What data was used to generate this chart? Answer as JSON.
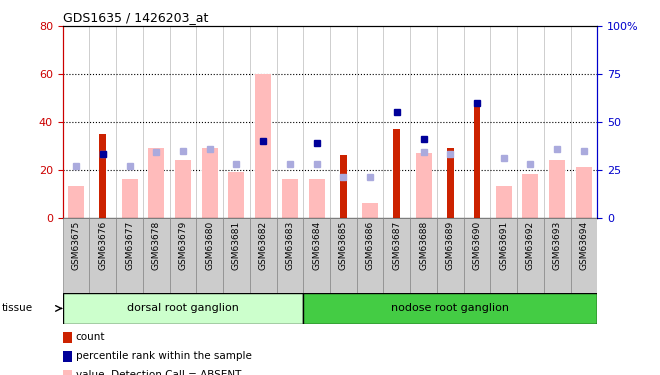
{
  "title": "GDS1635 / 1426203_at",
  "samples": [
    "GSM63675",
    "GSM63676",
    "GSM63677",
    "GSM63678",
    "GSM63679",
    "GSM63680",
    "GSM63681",
    "GSM63682",
    "GSM63683",
    "GSM63684",
    "GSM63685",
    "GSM63686",
    "GSM63687",
    "GSM63688",
    "GSM63689",
    "GSM63690",
    "GSM63691",
    "GSM63692",
    "GSM63693",
    "GSM63694"
  ],
  "group1_label": "dorsal root ganglion",
  "group2_label": "nodose root ganglion",
  "group1_count": 9,
  "group2_count": 11,
  "red_bars": [
    null,
    35,
    null,
    null,
    null,
    null,
    null,
    null,
    null,
    null,
    26,
    null,
    37,
    null,
    29,
    47,
    null,
    null,
    null,
    null
  ],
  "pink_bars": [
    13,
    null,
    16,
    29,
    24,
    29,
    19,
    60,
    16,
    16,
    null,
    6,
    null,
    27,
    null,
    null,
    13,
    18,
    24,
    21
  ],
  "blue_dots": [
    null,
    33,
    null,
    null,
    null,
    null,
    null,
    40,
    null,
    39,
    null,
    null,
    55,
    41,
    null,
    60,
    null,
    null,
    null,
    null
  ],
  "lavender_dots": [
    27,
    33,
    27,
    34,
    35,
    36,
    28,
    null,
    28,
    28,
    21,
    21,
    null,
    34,
    33,
    null,
    31,
    28,
    36,
    35
  ],
  "ylim_left": [
    0,
    80
  ],
  "ylim_right": [
    0,
    100
  ],
  "yticks_left": [
    0,
    20,
    40,
    60,
    80
  ],
  "yticks_right": [
    0,
    25,
    50,
    75,
    100
  ],
  "left_color": "#cc0000",
  "right_color": "#0000cc",
  "red_color": "#cc2200",
  "pink_color": "#ffbbbb",
  "blue_color": "#000099",
  "lavender_color": "#aaaadd",
  "group1_color": "#ccffcc",
  "group2_color": "#44cc44",
  "xtick_bg": "#cccccc"
}
